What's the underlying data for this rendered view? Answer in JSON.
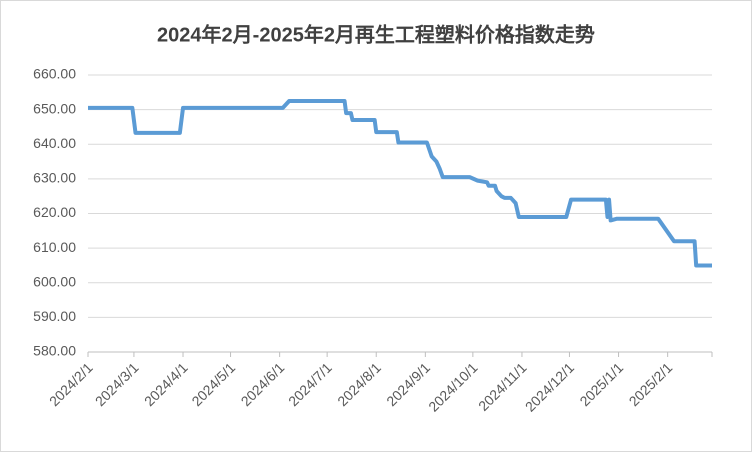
{
  "chart_data": {
    "type": "line",
    "title": "2024年2月-2025年2月再生工程塑料价格指数走势",
    "x": [
      "2024/2/1",
      "2024/2/29",
      "2024/3/2",
      "2024/3/30",
      "2024/4/1",
      "2024/6/3",
      "2024/6/7",
      "2024/7/12",
      "2024/7/13",
      "2024/7/16",
      "2024/7/17",
      "2024/7/31",
      "2024/8/1",
      "2024/8/14",
      "2024/8/15",
      "2024/9/2",
      "2024/9/5",
      "2024/9/8",
      "2024/9/10",
      "2024/9/12",
      "2024/9/29",
      "2024/10/4",
      "2024/10/10",
      "2024/10/11",
      "2024/10/15",
      "2024/10/16",
      "2024/10/19",
      "2024/10/21",
      "2024/10/25",
      "2024/10/28",
      "2024/10/30",
      "2024/11/29",
      "2024/12/2",
      "2024/12/24",
      "2024/12/25",
      "2024/12/26",
      "2024/12/27",
      "2024/12/31",
      "2025/1/26",
      "2025/2/5",
      "2025/2/18",
      "2025/2/19",
      "2025/3/1"
    ],
    "series": [
      {
        "name": "再生工程塑料价格指数",
        "color": "#5b9bd5",
        "values": [
          650.5,
          650.5,
          643.3,
          643.3,
          650.5,
          650.5,
          652.5,
          652.5,
          649,
          649,
          647,
          647,
          643.5,
          643.5,
          640.5,
          640.5,
          636.5,
          635,
          633,
          630.5,
          630.5,
          629.5,
          629,
          628,
          628,
          626.5,
          625,
          624.5,
          624.5,
          623,
          619,
          619,
          624,
          624,
          619,
          624,
          618,
          618.5,
          618.5,
          612,
          612,
          605,
          605
        ]
      }
    ],
    "xlim": [
      "2024/2/1",
      "2025/3/1"
    ],
    "xticks": [
      "2024/2/1",
      "2024/3/1",
      "2024/4/1",
      "2024/5/1",
      "2024/6/1",
      "2024/7/1",
      "2024/8/1",
      "2024/9/1",
      "2024/10/1",
      "2024/11/1",
      "2024/12/1",
      "2025/1/1",
      "2025/2/1"
    ],
    "ylim": [
      580,
      660
    ],
    "yticks": [
      {
        "value": 580,
        "label": "580.00"
      },
      {
        "value": 590,
        "label": "590.00"
      },
      {
        "value": 600,
        "label": "600.00"
      },
      {
        "value": 610,
        "label": "610.00"
      },
      {
        "value": 620,
        "label": "620.00"
      },
      {
        "value": 630,
        "label": "630.00"
      },
      {
        "value": 640,
        "label": "640.00"
      },
      {
        "value": 650,
        "label": "650.00"
      },
      {
        "value": 660,
        "label": "660.00"
      }
    ],
    "grid": true
  }
}
